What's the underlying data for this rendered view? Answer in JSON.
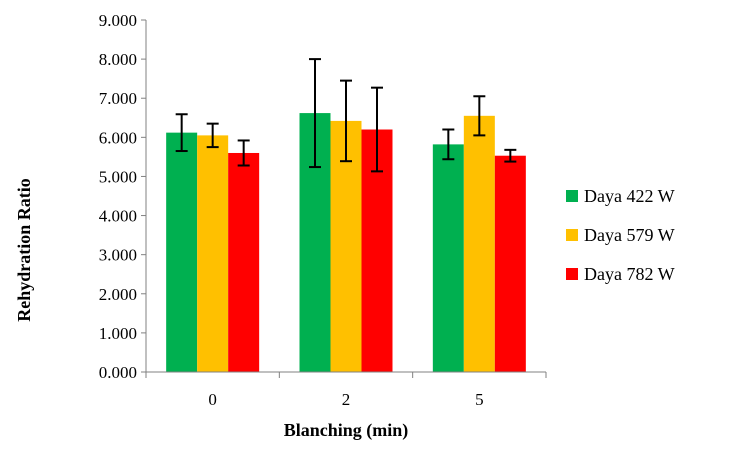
{
  "chart_data": {
    "type": "bar",
    "title": "",
    "xlabel": "Blanching (min)",
    "ylabel": "Rehydration Ratio",
    "categories": [
      "0",
      "2",
      "5"
    ],
    "ylim": [
      0,
      9
    ],
    "yticks": [
      "0.000",
      "1.000",
      "2.000",
      "3.000",
      "4.000",
      "5.000",
      "6.000",
      "7.000",
      "8.000",
      "9.000"
    ],
    "grid": false,
    "legend_position": "right",
    "series": [
      {
        "name": "Daya 422 W",
        "color": "#00B050",
        "values": [
          6.12,
          6.62,
          5.82
        ],
        "errors": [
          0.47,
          1.38,
          0.38
        ]
      },
      {
        "name": "Daya 579 W",
        "color": "#FFC000",
        "values": [
          6.05,
          6.42,
          6.55
        ],
        "errors": [
          0.3,
          1.03,
          0.5
        ]
      },
      {
        "name": "Daya 782 W",
        "color": "#FF0000",
        "values": [
          5.6,
          6.2,
          5.53
        ],
        "errors": [
          0.32,
          1.07,
          0.15
        ]
      }
    ]
  }
}
